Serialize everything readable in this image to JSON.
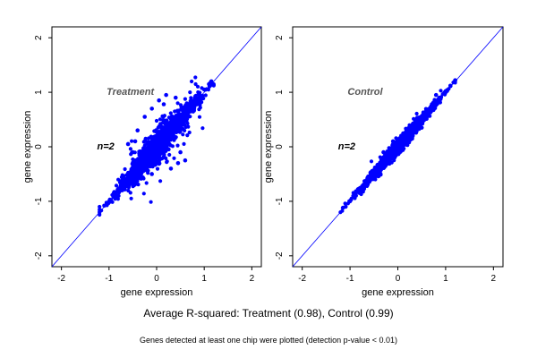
{
  "chart_data": [
    {
      "type": "scatter",
      "title": "Treatment",
      "xlabel": "gene expression",
      "ylabel": "gene expression",
      "xlim": [
        -2.2,
        2.2
      ],
      "ylim": [
        -2.2,
        2.2
      ],
      "xticks": [
        -2,
        -1,
        0,
        1,
        2
      ],
      "yticks": [
        -2,
        -1,
        0,
        1,
        2
      ],
      "grid": false,
      "annotation": "n=2",
      "reference_line": {
        "slope": 1,
        "intercept": 0
      },
      "point_color": "#0000ff",
      "cloud": {
        "x_range": [
          -1.2,
          1.2
        ],
        "spread": 0.15,
        "outlier_spread": 0.55
      },
      "series": [
        {
          "values": [
            [
              -1.1,
              -1.08
            ],
            [
              -1.0,
              -1.02
            ],
            [
              -0.9,
              -0.85
            ],
            [
              -0.8,
              -0.78
            ],
            [
              -0.7,
              -0.65
            ],
            [
              -0.6,
              -0.55
            ],
            [
              -0.5,
              -0.45
            ],
            [
              -0.4,
              -0.33
            ],
            [
              -0.3,
              -0.25
            ],
            [
              -0.2,
              -0.15
            ],
            [
              -0.1,
              -0.05
            ],
            [
              0.0,
              0.02
            ],
            [
              0.1,
              0.12
            ],
            [
              0.2,
              0.22
            ],
            [
              0.3,
              0.32
            ],
            [
              0.4,
              0.42
            ],
            [
              0.5,
              0.55
            ],
            [
              0.6,
              0.62
            ],
            [
              0.7,
              0.72
            ],
            [
              0.8,
              0.85
            ],
            [
              0.9,
              0.95
            ],
            [
              1.0,
              1.05
            ],
            [
              1.1,
              1.15
            ],
            [
              1.15,
              1.2
            ],
            [
              -0.6,
              0.05
            ],
            [
              -0.5,
              -0.1
            ],
            [
              -0.4,
              0.3
            ],
            [
              -0.25,
              0.55
            ],
            [
              -0.1,
              0.7
            ],
            [
              0.05,
              0.85
            ],
            [
              0.15,
              0.78
            ],
            [
              -0.1,
              -0.5
            ],
            [
              0.3,
              -0.4
            ],
            [
              0.5,
              -0.1
            ],
            [
              0.6,
              -0.25
            ],
            [
              0.45,
              -0.3
            ],
            [
              0.4,
              0.9
            ],
            [
              0.2,
              0.95
            ],
            [
              -0.45,
              0.1
            ]
          ]
        }
      ]
    },
    {
      "type": "scatter",
      "title": "Control",
      "xlabel": "gene expression",
      "ylabel": "gene expression",
      "xlim": [
        -2.2,
        2.2
      ],
      "ylim": [
        -2.2,
        2.2
      ],
      "xticks": [
        -2,
        -1,
        0,
        1,
        2
      ],
      "yticks": [
        -2,
        -1,
        0,
        1,
        2
      ],
      "grid": false,
      "annotation": "n=2",
      "reference_line": {
        "slope": 1,
        "intercept": 0
      },
      "point_color": "#0000ff",
      "cloud": {
        "x_range": [
          -1.2,
          1.2
        ],
        "spread": 0.07,
        "outlier_spread": 0.2
      },
      "series": [
        {
          "values": [
            [
              -1.15,
              -1.12
            ],
            [
              -1.0,
              -1.0
            ],
            [
              -0.9,
              -0.88
            ],
            [
              -0.8,
              -0.8
            ],
            [
              -0.7,
              -0.7
            ],
            [
              -0.6,
              -0.6
            ],
            [
              -0.5,
              -0.48
            ],
            [
              -0.4,
              -0.4
            ],
            [
              -0.3,
              -0.3
            ],
            [
              -0.2,
              -0.2
            ],
            [
              -0.1,
              -0.08
            ],
            [
              0.0,
              0.0
            ],
            [
              0.1,
              0.1
            ],
            [
              0.2,
              0.2
            ],
            [
              0.3,
              0.3
            ],
            [
              0.4,
              0.4
            ],
            [
              0.5,
              0.5
            ],
            [
              0.6,
              0.6
            ],
            [
              0.7,
              0.7
            ],
            [
              0.8,
              0.8
            ],
            [
              0.9,
              0.9
            ],
            [
              1.0,
              1.02
            ],
            [
              1.1,
              1.12
            ],
            [
              1.2,
              1.22
            ],
            [
              -0.3,
              -0.1
            ],
            [
              -0.1,
              0.1
            ],
            [
              0.3,
              0.15
            ],
            [
              0.5,
              0.35
            ],
            [
              0.8,
              0.95
            ]
          ]
        }
      ]
    }
  ],
  "caption_main": "Average R-squared: Treatment (0.98), Control (0.99)",
  "caption_sub": "Genes detected at least one chip were plotted (detection p-value < 0.01)"
}
